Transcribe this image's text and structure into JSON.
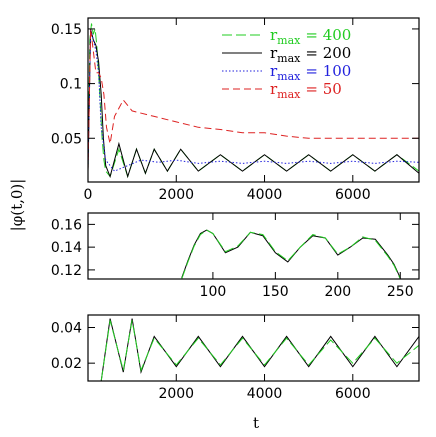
{
  "chart_data": [
    {
      "type": "line",
      "xlim": [
        0,
        7500
      ],
      "ylim": [
        0.01,
        0.16
      ],
      "xticks": [
        "0",
        "2000",
        "4000",
        "6000"
      ],
      "xtick_values": [
        0,
        2000,
        4000,
        6000
      ],
      "yticks": [
        "0.05",
        "0.1",
        "0.15"
      ],
      "ytick_values": [
        0.05,
        0.1,
        0.15
      ],
      "ylabel": "|φ(t,0)|",
      "legend_position": "top-right",
      "series": [
        {
          "name": "r",
          "subscript": "max",
          "eq": "= 400",
          "color": "#22cc22",
          "dash": "long-dash",
          "x": [
            0,
            40,
            80,
            120,
            160,
            200,
            240,
            280,
            320,
            360,
            400,
            500,
            700,
            900,
            1100,
            1300,
            1500,
            1800,
            2100,
            2500,
            3000,
            3500,
            4000,
            4500,
            5000,
            5500,
            6000,
            6500,
            7000,
            7500
          ],
          "y": [
            0.02,
            0.14,
            0.155,
            0.145,
            0.15,
            0.135,
            0.11,
            0.08,
            0.05,
            0.03,
            0.02,
            0.015,
            0.04,
            0.015,
            0.04,
            0.018,
            0.04,
            0.02,
            0.04,
            0.02,
            0.035,
            0.02,
            0.035,
            0.02,
            0.035,
            0.02,
            0.035,
            0.02,
            0.035,
            0.02
          ]
        },
        {
          "name": "r",
          "subscript": "max",
          "eq": "= 200",
          "color": "#000000",
          "dash": "solid",
          "x": [
            0,
            60,
            120,
            180,
            240,
            300,
            350,
            400,
            500,
            700,
            900,
            1100,
            1300,
            1500,
            1800,
            2100,
            2500,
            3000,
            3500,
            4000,
            4500,
            5000,
            5500,
            6000,
            6500,
            7000,
            7500
          ],
          "y": [
            0.02,
            0.15,
            0.14,
            0.135,
            0.12,
            0.09,
            0.05,
            0.025,
            0.015,
            0.045,
            0.015,
            0.04,
            0.018,
            0.04,
            0.02,
            0.04,
            0.02,
            0.035,
            0.02,
            0.035,
            0.02,
            0.035,
            0.02,
            0.035,
            0.02,
            0.035,
            0.018
          ]
        },
        {
          "name": "r",
          "subscript": "max",
          "eq": "= 100",
          "color": "#2222dd",
          "dash": "dotted",
          "x": [
            0,
            60,
            120,
            180,
            240,
            300,
            400,
            600,
            900,
            1200,
            1600,
            2000,
            2500,
            3000,
            3500,
            4000,
            4500,
            5000,
            5500,
            6000,
            6500,
            7000,
            7500
          ],
          "y": [
            0.02,
            0.15,
            0.14,
            0.13,
            0.11,
            0.06,
            0.03,
            0.02,
            0.025,
            0.03,
            0.028,
            0.03,
            0.027,
            0.029,
            0.027,
            0.029,
            0.027,
            0.029,
            0.027,
            0.029,
            0.027,
            0.029,
            0.028
          ]
        },
        {
          "name": "r",
          "subscript": "max",
          "eq": "= 50",
          "color": "#dd2222",
          "dash": "short-dash",
          "x": [
            0,
            60,
            120,
            180,
            240,
            300,
            360,
            420,
            500,
            600,
            800,
            1000,
            1500,
            2000,
            2500,
            3000,
            3500,
            4000,
            4500,
            5000,
            5500,
            6000,
            6500,
            7000,
            7500
          ],
          "y": [
            0.02,
            0.15,
            0.13,
            0.11,
            0.11,
            0.105,
            0.09,
            0.06,
            0.045,
            0.07,
            0.085,
            0.075,
            0.07,
            0.065,
            0.06,
            0.058,
            0.055,
            0.055,
            0.052,
            0.05,
            0.05,
            0.05,
            0.05,
            0.05,
            0.05
          ]
        }
      ]
    },
    {
      "type": "line",
      "xlim": [
        0,
        265
      ],
      "ylim": [
        0.112,
        0.17
      ],
      "xticks": [
        "100",
        "150",
        "200",
        "250"
      ],
      "xtick_values": [
        100,
        150,
        200,
        250
      ],
      "yticks": [
        "0.12",
        "0.14",
        "0.16"
      ],
      "ytick_values": [
        0.12,
        0.14,
        0.16
      ],
      "series": [
        {
          "color": "#000000",
          "dash": "solid",
          "x": [
            75,
            80,
            85,
            90,
            95,
            100,
            110,
            120,
            130,
            140,
            150,
            160,
            170,
            180,
            190,
            200,
            210,
            220,
            230,
            240,
            245,
            250
          ],
          "y": [
            0.113,
            0.128,
            0.142,
            0.152,
            0.155,
            0.152,
            0.135,
            0.14,
            0.153,
            0.15,
            0.135,
            0.127,
            0.14,
            0.15,
            0.148,
            0.133,
            0.14,
            0.148,
            0.147,
            0.133,
            0.125,
            0.113
          ]
        },
        {
          "color": "#22cc22",
          "dash": "long-dash",
          "x": [
            75,
            80,
            85,
            90,
            95,
            100,
            110,
            120,
            130,
            140,
            150,
            160,
            170,
            180,
            190,
            200,
            210,
            220,
            230,
            240,
            245,
            250
          ],
          "y": [
            0.112,
            0.127,
            0.141,
            0.151,
            0.155,
            0.152,
            0.136,
            0.141,
            0.153,
            0.151,
            0.136,
            0.128,
            0.14,
            0.151,
            0.148,
            0.134,
            0.14,
            0.149,
            0.146,
            0.132,
            0.124,
            0.112
          ]
        }
      ]
    },
    {
      "type": "line",
      "xlim": [
        0,
        7500
      ],
      "ylim": [
        0.01,
        0.047
      ],
      "xticks": [
        "2000",
        "4000",
        "6000"
      ],
      "xtick_values": [
        2000,
        4000,
        6000
      ],
      "yticks": [
        "0.02",
        "0.04"
      ],
      "ytick_values": [
        0.02,
        0.04
      ],
      "xlabel": "t",
      "series": [
        {
          "color": "#000000",
          "dash": "solid",
          "x": [
            0,
            300,
            500,
            800,
            1000,
            1200,
            1500,
            2000,
            2500,
            3000,
            3500,
            4000,
            4500,
            5000,
            5500,
            6000,
            6500,
            7000,
            7500
          ],
          "y": [
            0.01,
            0.01,
            0.045,
            0.015,
            0.045,
            0.015,
            0.035,
            0.018,
            0.035,
            0.018,
            0.035,
            0.018,
            0.035,
            0.018,
            0.035,
            0.018,
            0.035,
            0.018,
            0.035
          ]
        },
        {
          "color": "#22cc22",
          "dash": "long-dash",
          "x": [
            0,
            300,
            500,
            800,
            1000,
            1200,
            1500,
            2000,
            2500,
            3000,
            3500,
            4000,
            4500,
            5000,
            5500,
            6000,
            6500,
            7000,
            7500
          ],
          "y": [
            0.01,
            0.01,
            0.044,
            0.016,
            0.044,
            0.016,
            0.034,
            0.019,
            0.034,
            0.019,
            0.034,
            0.019,
            0.034,
            0.019,
            0.033,
            0.02,
            0.034,
            0.02,
            0.03
          ]
        }
      ]
    }
  ]
}
